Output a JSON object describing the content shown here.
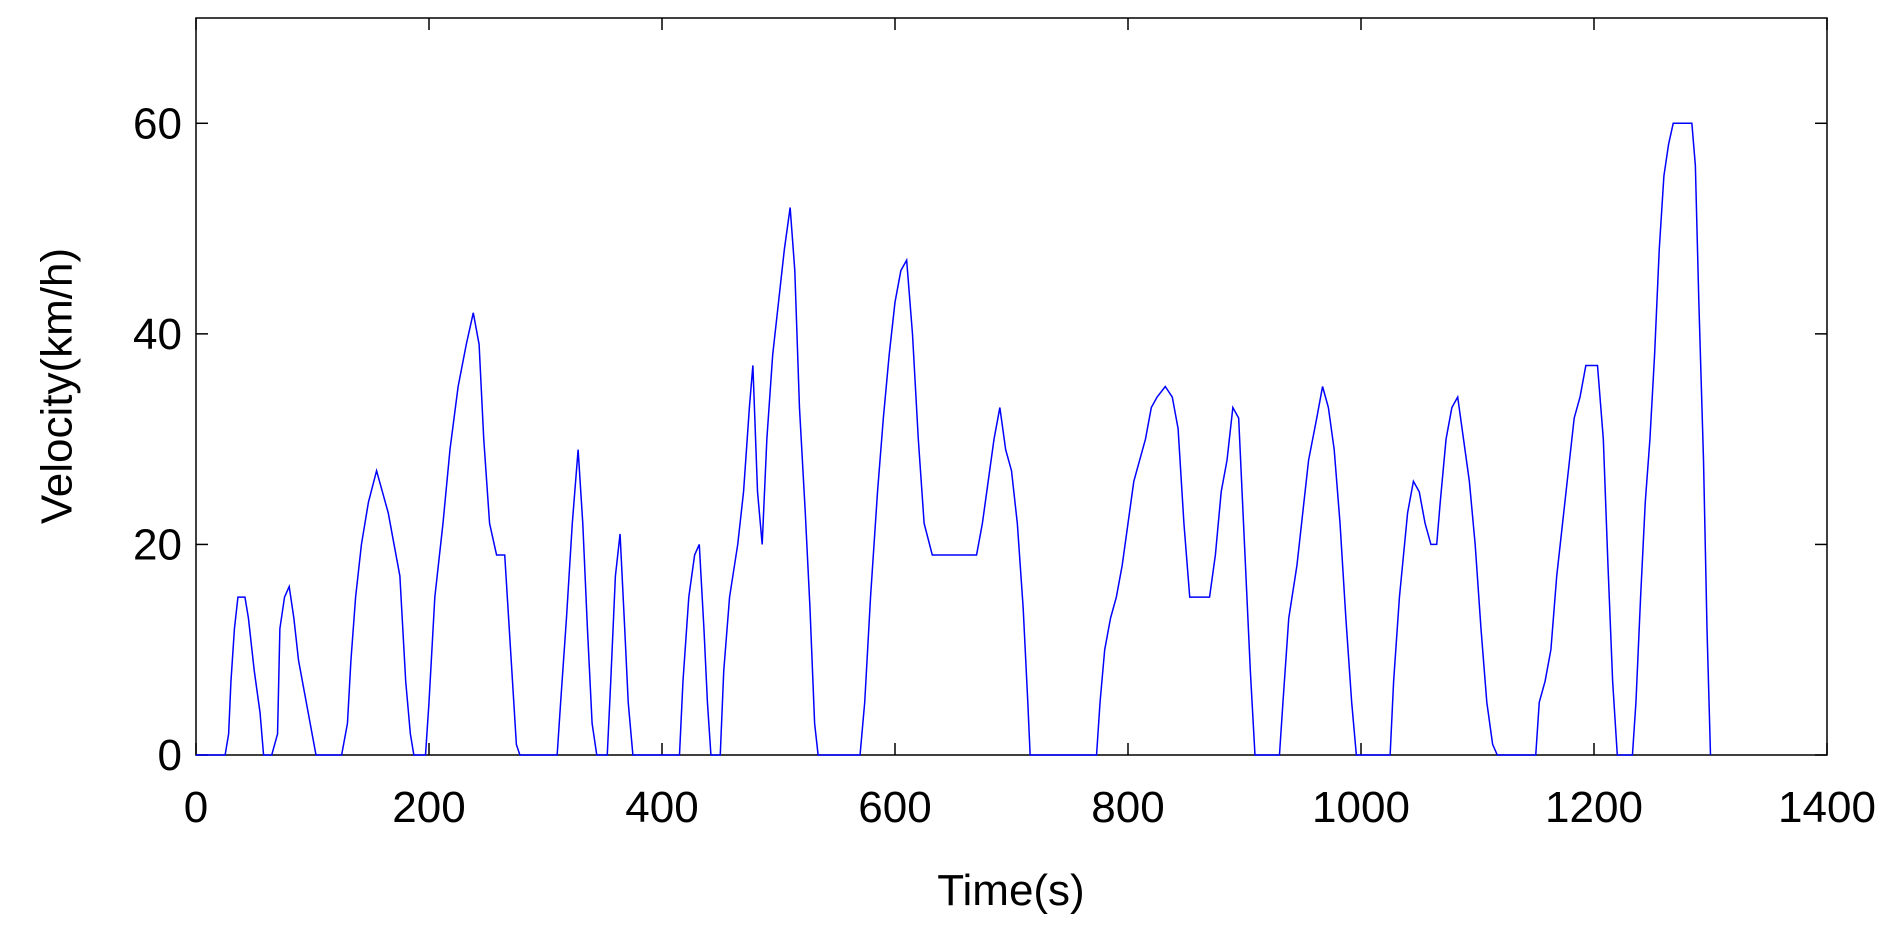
{
  "chart_data": {
    "type": "line",
    "xlabel": "Time(s)",
    "ylabel": "Velocity(km/h)",
    "xlim": [
      0,
      1400
    ],
    "xticks": [
      0,
      200,
      400,
      600,
      800,
      1000,
      1200,
      1400
    ],
    "ylim": [
      0,
      70
    ],
    "yticks": [
      0,
      20,
      40,
      60
    ],
    "grid": false,
    "series": [
      {
        "color": "#0000ff",
        "x": [
          0,
          25,
          28,
          30,
          33,
          36,
          42,
          45,
          50,
          55,
          58,
          65,
          70,
          72,
          76,
          80,
          84,
          88,
          93,
          98,
          103,
          125,
          130,
          133,
          137,
          142,
          148,
          155,
          160,
          165,
          170,
          175,
          180,
          184,
          187,
          197,
          200,
          205,
          212,
          218,
          225,
          232,
          238,
          243,
          247,
          252,
          258,
          265,
          270,
          275,
          278,
          310,
          313,
          318,
          323,
          328,
          332,
          336,
          340,
          344,
          353,
          356,
          360,
          364,
          368,
          371,
          375,
          415,
          418,
          423,
          428,
          432,
          436,
          439,
          442,
          450,
          453,
          458,
          465,
          470,
          475,
          478,
          482,
          486,
          490,
          495,
          500,
          505,
          510,
          514,
          518,
          523,
          527,
          531,
          534,
          570,
          574,
          579,
          585,
          590,
          595,
          600,
          605,
          610,
          615,
          620,
          625,
          632,
          670,
          675,
          680,
          685,
          690,
          695,
          700,
          705,
          710,
          714,
          716,
          773,
          776,
          780,
          785,
          790,
          795,
          800,
          805,
          810,
          815,
          820,
          825,
          832,
          838,
          843,
          848,
          853,
          870,
          875,
          880,
          885,
          890,
          895,
          900,
          905,
          909,
          930,
          933,
          938,
          945,
          950,
          955,
          962,
          967,
          972,
          977,
          982,
          987,
          992,
          996,
          1025,
          1028,
          1033,
          1040,
          1045,
          1050,
          1055,
          1060,
          1065,
          1068,
          1073,
          1078,
          1083,
          1088,
          1093,
          1098,
          1103,
          1108,
          1113,
          1117,
          1150,
          1153,
          1158,
          1163,
          1168,
          1173,
          1178,
          1183,
          1188,
          1193,
          1203,
          1208,
          1212,
          1216,
          1220,
          1233,
          1236,
          1240,
          1244,
          1248,
          1252,
          1256,
          1260,
          1264,
          1268,
          1284,
          1287,
          1290,
          1294,
          1297,
          1300
        ],
        "values": [
          0,
          0,
          2,
          7,
          12,
          15,
          15,
          13,
          8,
          4,
          0,
          0,
          2,
          12,
          15,
          16,
          13,
          9,
          6,
          3,
          0,
          0,
          3,
          9,
          15,
          20,
          24,
          27,
          25,
          23,
          20,
          17,
          7,
          2,
          0,
          0,
          5,
          15,
          22,
          29,
          35,
          39,
          42,
          39,
          30,
          22,
          19,
          19,
          10,
          1,
          0,
          0,
          5,
          13,
          22,
          29,
          22,
          12,
          3,
          0,
          0,
          7,
          17,
          21,
          12,
          5,
          0,
          0,
          7,
          15,
          19,
          20,
          12,
          5,
          0,
          0,
          8,
          15,
          20,
          25,
          33,
          37,
          25,
          20,
          30,
          38,
          43,
          48,
          52,
          46,
          33,
          23,
          14,
          3,
          0,
          0,
          5,
          15,
          25,
          32,
          38,
          43,
          46,
          47,
          40,
          30,
          22,
          19,
          19,
          22,
          26,
          30,
          33,
          29,
          27,
          22,
          14,
          5,
          0,
          0,
          5,
          10,
          13,
          15,
          18,
          22,
          26,
          28,
          30,
          33,
          34,
          35,
          34,
          31,
          22,
          15,
          15,
          19,
          25,
          28,
          33,
          32,
          20,
          8,
          0,
          0,
          5,
          13,
          18,
          23,
          28,
          32,
          35,
          33,
          29,
          22,
          13,
          5,
          0,
          0,
          7,
          15,
          23,
          26,
          25,
          22,
          20,
          20,
          24,
          30,
          33,
          34,
          30,
          26,
          20,
          12,
          5,
          1,
          0,
          0,
          5,
          7,
          10,
          17,
          22,
          27,
          32,
          34,
          37,
          37,
          30,
          18,
          7,
          0,
          0,
          5,
          15,
          24,
          30,
          38,
          48,
          55,
          58,
          60,
          60,
          56,
          43,
          28,
          12,
          0
        ]
      }
    ]
  }
}
